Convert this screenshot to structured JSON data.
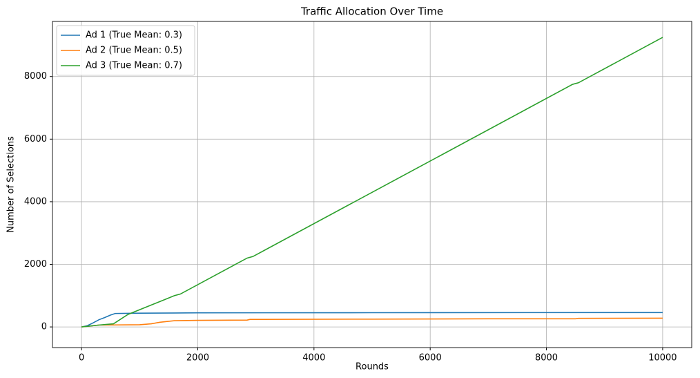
{
  "chart_data": {
    "type": "line",
    "title": "Traffic Allocation Over Time",
    "x_label": "Rounds",
    "y_label": "Number of Selections",
    "xlim": [
      -500,
      10500
    ],
    "ylim": [
      -660,
      9760
    ],
    "xticks": [
      0,
      2000,
      4000,
      6000,
      8000,
      10000
    ],
    "yticks": [
      0,
      2000,
      4000,
      6000,
      8000
    ],
    "grid": true,
    "legend": "upper-left",
    "series": [
      {
        "name": "Ad 1 (True Mean: 0.3)",
        "color": "#1f77b4",
        "x": [
          0,
          100,
          200,
          300,
          400,
          500,
          580,
          1000,
          2000,
          5000,
          10000
        ],
        "values": [
          0,
          40,
          130,
          230,
          300,
          380,
          430,
          440,
          450,
          455,
          460
        ]
      },
      {
        "name": "Ad 2 (True Mean: 0.5)",
        "color": "#ff7f0e",
        "x": [
          0,
          300,
          1000,
          1200,
          1350,
          1600,
          2000,
          2850,
          2900,
          5000,
          7000,
          8500,
          8550,
          10000
        ],
        "values": [
          0,
          60,
          70,
          100,
          150,
          200,
          210,
          220,
          240,
          250,
          260,
          260,
          275,
          280
        ]
      },
      {
        "name": "Ad 3 (True Mean: 0.7)",
        "color": "#2ca02c",
        "x": [
          0,
          300,
          550,
          800,
          1200,
          1400,
          1600,
          1700,
          2850,
          2950,
          8450,
          8550,
          10000
        ],
        "values": [
          0,
          60,
          100,
          400,
          700,
          850,
          1000,
          1050,
          2200,
          2250,
          7750,
          7800,
          9250
        ]
      }
    ]
  }
}
